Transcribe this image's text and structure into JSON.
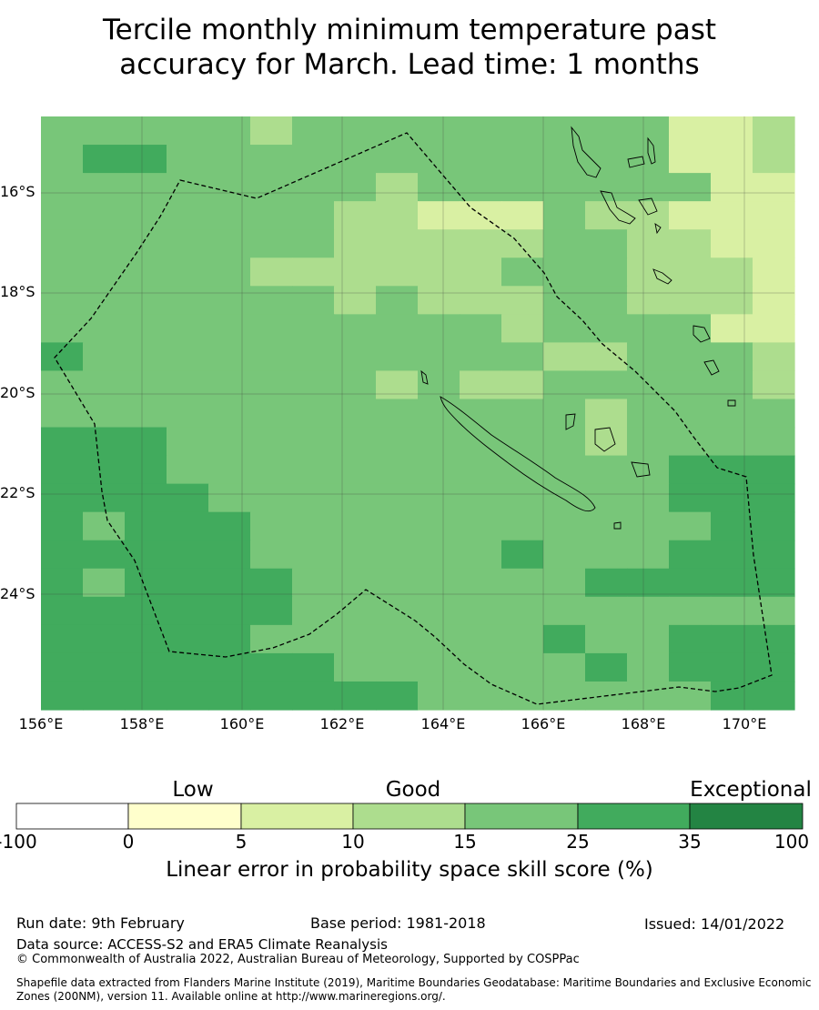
{
  "title_line1": "Tercile monthly minimum temperature past",
  "title_line2": "accuracy for March. Lead time: 1 months",
  "map": {
    "lon_labels": [
      "156°E",
      "158°E",
      "160°E",
      "162°E",
      "164°E",
      "166°E",
      "168°E",
      "170°E"
    ],
    "lat_labels": [
      "16°S",
      "18°S",
      "20°S",
      "22°S",
      "24°S"
    ],
    "lon_range": [
      156,
      171
    ],
    "lat_range": [
      -14.6,
      -26.4
    ],
    "grid_on": true,
    "skill_grid_legend_classes": [
      "0-5",
      "5-10",
      "10-15",
      "15-25",
      "25-35"
    ],
    "boundary": "dashed EEZ outline"
  },
  "colorbar": {
    "categories": [
      "Low",
      "Good",
      "Exceptional"
    ],
    "ticks": [
      "-100",
      "0",
      "5",
      "10",
      "15",
      "25",
      "35",
      "100"
    ],
    "colors": [
      "#ffffff",
      "#ffffcc",
      "#d9f0a3",
      "#addd8e",
      "#78c679",
      "#41ab5d",
      "#238443"
    ],
    "label": "Linear error in probability space skill score (%)"
  },
  "footer": {
    "run_date": "Run date: 9th February",
    "base_period": "Base period: 1981-2018",
    "issued": "Issued: 14/01/2022",
    "data_source": "Data source: ACCESS-S2 and ERA5 Climate Reanalysis",
    "copyright": "© Commonwealth of Australia 2022, Australian Bureau of Meteorology, Supported by COSPPac",
    "shapefile": "Shapefile data extracted from Flanders Marine Institute (2019), Maritime Boundaries Geodatabase: Maritime Boundaries and Exclusive Economic Zones (200NM), version 11. Available online at http://www.marineregions.org/."
  }
}
